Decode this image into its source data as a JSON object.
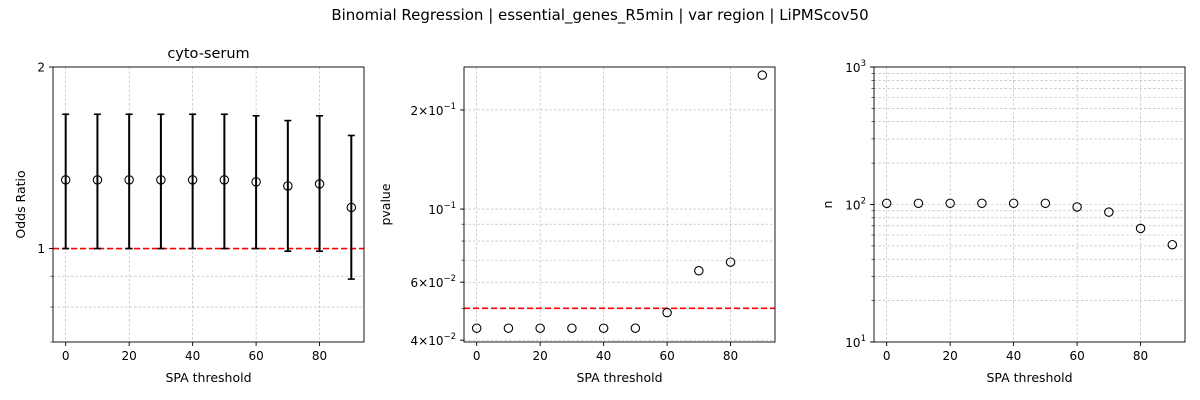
{
  "figure_title": "Binomial Regression | essential_genes_R5min | var region | LiPMScov50",
  "chart_data": [
    {
      "type": "scatter",
      "title": "cyto-serum",
      "xlabel": "SPA threshold",
      "ylabel": "Odds Ratio",
      "yscale": "log",
      "xlim": [
        -4,
        94
      ],
      "ylim": [
        0.7,
        2.0
      ],
      "x_ticks": [
        0,
        20,
        40,
        60,
        80
      ],
      "y_ticks": [
        1,
        2
      ],
      "y_tick_labels": [
        "1",
        "2"
      ],
      "x": [
        0,
        10,
        20,
        30,
        40,
        50,
        60,
        70,
        80,
        90
      ],
      "y": [
        1.3,
        1.3,
        1.3,
        1.3,
        1.3,
        1.3,
        1.29,
        1.27,
        1.28,
        1.17
      ],
      "err_low": [
        1.0,
        1.0,
        1.0,
        1.0,
        1.0,
        1.0,
        1.0,
        0.99,
        0.99,
        0.89
      ],
      "err_high": [
        1.67,
        1.67,
        1.67,
        1.67,
        1.67,
        1.67,
        1.66,
        1.63,
        1.66,
        1.54
      ],
      "reference_line": 1.0,
      "grid": true
    },
    {
      "type": "scatter",
      "title": "",
      "xlabel": "SPA threshold",
      "ylabel": "pvalue",
      "yscale": "log",
      "xlim": [
        -4,
        94
      ],
      "ylim": [
        0.0395,
        0.27
      ],
      "x_ticks": [
        0,
        20,
        40,
        60,
        80
      ],
      "y_ticks": [
        0.04,
        0.06,
        0.1,
        0.2
      ],
      "y_tick_base": [
        "4",
        "6",
        "10",
        "2"
      ],
      "y_tick_exp": [
        "−2",
        "−2",
        "−1",
        "−1"
      ],
      "x": [
        0,
        10,
        20,
        30,
        40,
        50,
        60,
        70,
        80,
        90
      ],
      "y": [
        0.0435,
        0.0435,
        0.0435,
        0.0435,
        0.0435,
        0.0435,
        0.0485,
        0.065,
        0.069,
        0.255
      ],
      "reference_line": 0.05,
      "grid": true
    },
    {
      "type": "scatter",
      "title": "",
      "xlabel": "SPA threshold",
      "ylabel": "n",
      "yscale": "log",
      "xlim": [
        -4,
        94
      ],
      "ylim": [
        10,
        1000
      ],
      "x_ticks": [
        0,
        20,
        40,
        60,
        80
      ],
      "y_ticks": [
        10,
        100,
        1000
      ],
      "y_tick_base": [
        "10",
        "10",
        "10"
      ],
      "y_tick_exp": [
        "1",
        "2",
        "3"
      ],
      "x": [
        0,
        10,
        20,
        30,
        40,
        50,
        60,
        70,
        80,
        90
      ],
      "y": [
        102,
        102,
        102,
        102,
        102,
        102,
        96,
        88,
        67,
        51
      ],
      "grid": true
    }
  ],
  "colors": {
    "reference": "#ff0000",
    "marker_edge": "#000000",
    "errorbar": "#000000",
    "grid": "#b0b0b0"
  }
}
